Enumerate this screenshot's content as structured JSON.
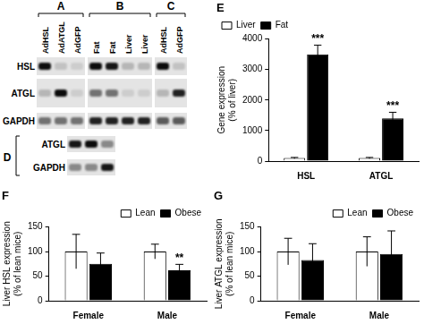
{
  "blots": {
    "groups": [
      {
        "label": "A",
        "lanes": [
          "AdHSL",
          "AdATGL",
          "AdGFP"
        ]
      },
      {
        "label": "B",
        "lanes": [
          "Fat",
          "Fat",
          "Liver",
          "Liver"
        ]
      },
      {
        "label": "C",
        "lanes": [
          "AdHSL",
          "AdGFP"
        ]
      }
    ],
    "rows": [
      "HSL",
      "ATGL",
      "GAPDH"
    ],
    "inset": {
      "label": "D",
      "rows": [
        "ATGL",
        "GAPDH"
      ]
    }
  },
  "chart_data": [
    {
      "type": "bar",
      "title": "E",
      "ylabel": [
        "Gene expression",
        "(% of liver)"
      ],
      "categories": [
        "HSL",
        "ATGL"
      ],
      "series": [
        {
          "name": "Liver",
          "color": "#ffffff",
          "values": [
            100,
            100
          ],
          "errors": [
            20,
            20
          ]
        },
        {
          "name": "Fat",
          "color": "#000000",
          "values": [
            3500,
            1400
          ],
          "errors": [
            300,
            200
          ]
        }
      ],
      "ylim": [
        0,
        4000
      ],
      "yticks": [
        0,
        1000,
        2000,
        3000,
        4000
      ],
      "grid": false,
      "legend": "upper left",
      "annotations": [
        {
          "category": "HSL",
          "series": "Fat",
          "text": "***"
        },
        {
          "category": "ATGL",
          "series": "Fat",
          "text": "***"
        }
      ]
    },
    {
      "type": "bar",
      "title": "F",
      "ylabel": [
        "Liver HSL expression",
        "(% of lean mice)"
      ],
      "categories": [
        "Female",
        "Male"
      ],
      "series": [
        {
          "name": "Lean",
          "color": "#ffffff",
          "values": [
            100,
            100
          ],
          "errors": [
            35,
            15
          ]
        },
        {
          "name": "Obese",
          "color": "#000000",
          "values": [
            75,
            62
          ],
          "errors": [
            22,
            12
          ]
        }
      ],
      "ylim": [
        0,
        150
      ],
      "yticks": [
        0,
        50,
        100,
        150
      ],
      "grid": false,
      "legend": "upper right",
      "annotations": [
        {
          "category": "Male",
          "series": "Obese",
          "text": "**"
        }
      ]
    },
    {
      "type": "bar",
      "title": "G",
      "ylabel": [
        "Liver ATGL expression",
        "(% of lean mice)"
      ],
      "categories": [
        "Female",
        "Male"
      ],
      "series": [
        {
          "name": "Lean",
          "color": "#ffffff",
          "values": [
            100,
            100
          ],
          "errors": [
            27,
            30
          ]
        },
        {
          "name": "Obese",
          "color": "#000000",
          "values": [
            83,
            95
          ],
          "errors": [
            33,
            47
          ]
        }
      ],
      "ylim": [
        0,
        150
      ],
      "yticks": [
        0,
        50,
        100,
        150
      ],
      "grid": false,
      "legend": "upper right"
    }
  ]
}
